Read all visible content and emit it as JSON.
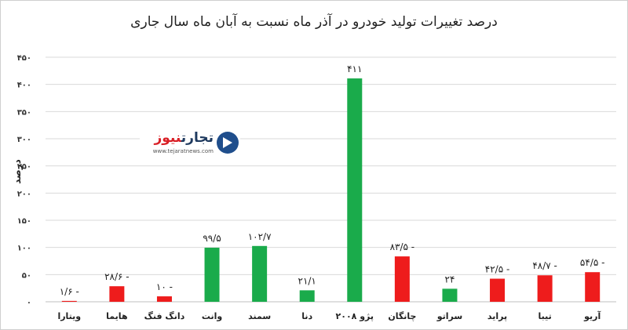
{
  "chart_data": {
    "type": "bar",
    "title": "درصد تغییرات تولید خودرو در آذر ماه نسبت به آبان ماه سال جاری",
    "ylabel": "درصد",
    "xlabel": "",
    "ylim": [
      0,
      450
    ],
    "yticks": [
      0,
      50,
      100,
      150,
      200,
      250,
      300,
      350,
      400,
      450
    ],
    "ytick_labels": [
      "۰",
      "۵۰",
      "۱۰۰",
      "۱۵۰",
      "۲۰۰",
      "۲۵۰",
      "۳۰۰",
      "۳۵۰",
      "۴۰۰",
      "۴۵۰"
    ],
    "grid": true,
    "categories": [
      "ویتارا",
      "هایما",
      "دانگ فنگ",
      "وانت",
      "سمند",
      "دنا",
      "پژو ۲۰۰۸",
      "چانگان",
      "سراتو",
      "پراید",
      "تیبا",
      "آریو"
    ],
    "values": [
      1.6,
      28.6,
      10,
      99.5,
      102.7,
      21.1,
      411,
      83.5,
      24,
      42.5,
      48.7,
      54.5
    ],
    "signs": [
      "negative",
      "negative",
      "negative",
      "positive",
      "positive",
      "positive",
      "positive",
      "negative",
      "positive",
      "negative",
      "negative",
      "negative"
    ],
    "data_labels": [
      "- ۱/۶",
      "- ۲۸/۶",
      "- ۱۰",
      "۹۹/۵",
      "۱۰۲/۷",
      "۲۱/۱",
      "۴۱۱",
      "- ۸۳/۵",
      "۲۴",
      "- ۴۲/۵",
      "- ۴۸/۷",
      "- ۵۴/۵"
    ],
    "colors": {
      "positive": "#1aab4b",
      "negative": "#ee1c1c",
      "grid": "#d9d9d9",
      "axis": "#bfbfbf"
    }
  },
  "watermark": {
    "name_part1": "تجارت",
    "name_part2": "نیوز",
    "url": "www.tejaratnews.com",
    "logo_icon": "arrow-circle-icon"
  }
}
